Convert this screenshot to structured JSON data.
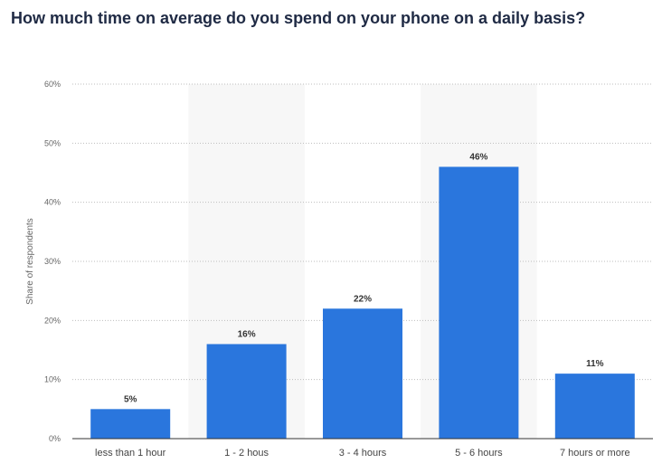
{
  "title": "How much time on average do you spend on your phone on a daily basis?",
  "chart_data": {
    "type": "bar",
    "title": "How much time on average do you spend on your phone on a daily basis?",
    "xlabel": "",
    "ylabel": "Share of respondents",
    "categories": [
      "less than 1 hour",
      "1 - 2 hous",
      "3 - 4 hours",
      "5 - 6 hours",
      "7 hours or more"
    ],
    "values": [
      5,
      16,
      22,
      46,
      11
    ],
    "data_labels": [
      "5%",
      "16%",
      "22%",
      "46%",
      "11%"
    ],
    "ylim": [
      0,
      60
    ],
    "yticks": [
      0,
      10,
      20,
      30,
      40,
      50,
      60
    ],
    "ytick_labels": [
      "0%",
      "10%",
      "20%",
      "30%",
      "40%",
      "50%",
      "60%"
    ],
    "grid": true,
    "shaded_columns": [
      1,
      3
    ],
    "colors": {
      "bar": "#2a76dd",
      "shade": "#f7f7f7",
      "grid": "#bdbdbd",
      "axis": "#333333"
    }
  }
}
